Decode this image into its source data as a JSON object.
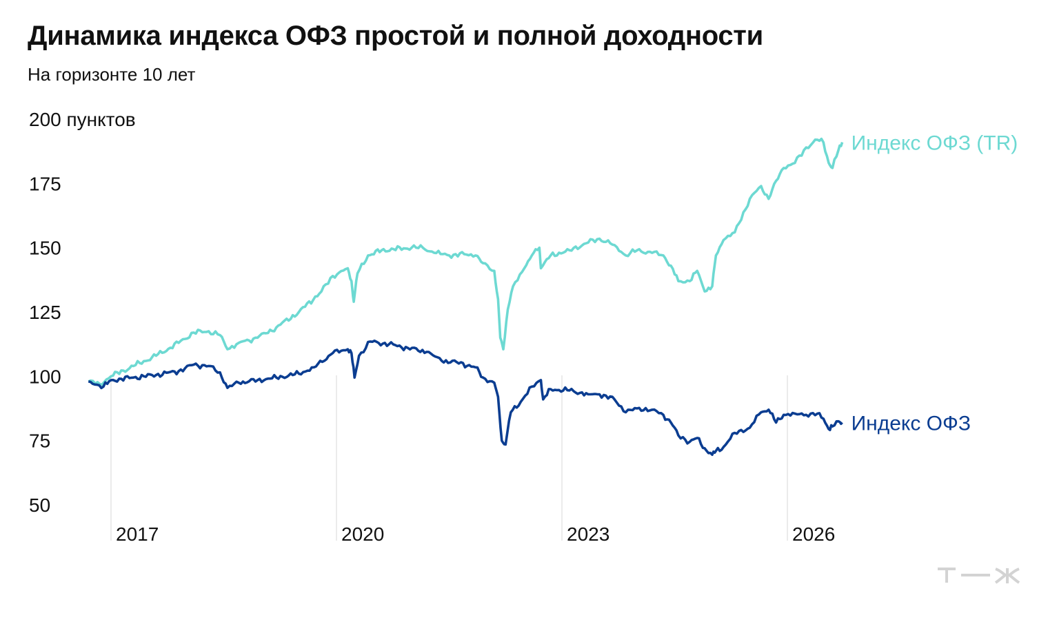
{
  "title": "Динамика индекса ОФЗ простой и полной доходности",
  "subtitle": "На горизонте 10 лет",
  "colors": {
    "tr": "#6dd9d2",
    "price": "#0b3d91",
    "grid": "#e0e0e0",
    "logo": "#d3d3d3"
  },
  "logo_icon": "t-zh-logo",
  "chart_data": {
    "type": "line",
    "xlim": [
      2015.85,
      2029.5
    ],
    "ylim": [
      50,
      200
    ],
    "y_ticks": [
      50,
      75,
      100,
      125,
      150,
      175,
      200
    ],
    "y_tick_labels": [
      "50",
      "75",
      "100",
      "125",
      "150",
      "175",
      "200 пунктов"
    ],
    "x_ticks": [
      2017,
      2020,
      2023,
      2026
    ],
    "x_tick_labels": [
      "2017",
      "2020",
      "2023",
      "2026"
    ],
    "grid": "vertical",
    "legend": "inline-right",
    "series": [
      {
        "name": "Индекс ОФЗ (TR)",
        "color": "#6dd9d2",
        "points": [
          [
            2016.7,
            98
          ],
          [
            2016.85,
            97
          ],
          [
            2017.0,
            100
          ],
          [
            2017.3,
            104
          ],
          [
            2017.6,
            108
          ],
          [
            2017.9,
            113
          ],
          [
            2018.1,
            117
          ],
          [
            2018.3,
            117.5
          ],
          [
            2018.45,
            116
          ],
          [
            2018.55,
            110.5
          ],
          [
            2018.7,
            113
          ],
          [
            2018.95,
            115
          ],
          [
            2019.2,
            119
          ],
          [
            2019.5,
            125
          ],
          [
            2019.8,
            133
          ],
          [
            2019.95,
            139
          ],
          [
            2020.15,
            142
          ],
          [
            2020.2,
            137
          ],
          [
            2020.23,
            129
          ],
          [
            2020.28,
            140
          ],
          [
            2020.42,
            147
          ],
          [
            2020.6,
            149
          ],
          [
            2021.0,
            150
          ],
          [
            2021.15,
            150
          ],
          [
            2021.3,
            148
          ],
          [
            2021.5,
            147
          ],
          [
            2021.7,
            147.5
          ],
          [
            2021.85,
            147
          ],
          [
            2021.95,
            144
          ],
          [
            2022.1,
            141
          ],
          [
            2022.15,
            130
          ],
          [
            2022.18,
            115
          ],
          [
            2022.22,
            110.5
          ],
          [
            2022.28,
            126
          ],
          [
            2022.35,
            135
          ],
          [
            2022.5,
            142
          ],
          [
            2022.6,
            147
          ],
          [
            2022.7,
            150
          ],
          [
            2022.72,
            142
          ],
          [
            2022.85,
            147
          ],
          [
            2023.1,
            149
          ],
          [
            2023.35,
            152
          ],
          [
            2023.5,
            153.5
          ],
          [
            2023.7,
            151
          ],
          [
            2023.85,
            147
          ],
          [
            2024.0,
            149
          ],
          [
            2024.2,
            148
          ],
          [
            2024.35,
            147
          ],
          [
            2024.45,
            143
          ],
          [
            2024.55,
            137
          ],
          [
            2024.7,
            137
          ],
          [
            2024.8,
            141
          ],
          [
            2024.9,
            133
          ],
          [
            2025.0,
            135
          ],
          [
            2025.05,
            147
          ],
          [
            2025.15,
            153
          ],
          [
            2025.3,
            156
          ],
          [
            2025.5,
            169
          ],
          [
            2025.65,
            174
          ],
          [
            2025.75,
            169
          ],
          [
            2025.85,
            176
          ],
          [
            2025.95,
            181
          ],
          [
            2026.1,
            183
          ],
          [
            2026.25,
            189
          ],
          [
            2026.4,
            192
          ],
          [
            2026.48,
            191
          ],
          [
            2026.55,
            183
          ],
          [
            2026.6,
            181
          ],
          [
            2026.68,
            188
          ],
          [
            2026.73,
            191
          ]
        ]
      },
      {
        "name": "Индекс ОФЗ",
        "color": "#0b3d91",
        "points": [
          [
            2016.7,
            98
          ],
          [
            2016.9,
            96
          ],
          [
            2017.0,
            98.5
          ],
          [
            2017.3,
            99.5
          ],
          [
            2017.6,
            100.5
          ],
          [
            2017.9,
            102
          ],
          [
            2018.1,
            104.5
          ],
          [
            2018.3,
            104
          ],
          [
            2018.45,
            101.5
          ],
          [
            2018.55,
            95.5
          ],
          [
            2018.7,
            97.5
          ],
          [
            2018.95,
            98.5
          ],
          [
            2019.2,
            99.5
          ],
          [
            2019.5,
            101
          ],
          [
            2019.7,
            103.5
          ],
          [
            2019.95,
            109
          ],
          [
            2020.15,
            110.5
          ],
          [
            2020.2,
            109
          ],
          [
            2020.24,
            99.5
          ],
          [
            2020.3,
            108
          ],
          [
            2020.45,
            113.5
          ],
          [
            2020.7,
            112.5
          ],
          [
            2020.95,
            111
          ],
          [
            2021.2,
            109.5
          ],
          [
            2021.4,
            106
          ],
          [
            2021.6,
            105.5
          ],
          [
            2021.85,
            103.5
          ],
          [
            2021.95,
            99.5
          ],
          [
            2022.1,
            97.5
          ],
          [
            2022.15,
            92
          ],
          [
            2022.2,
            75
          ],
          [
            2022.25,
            73.5
          ],
          [
            2022.32,
            86
          ],
          [
            2022.45,
            90
          ],
          [
            2022.6,
            96
          ],
          [
            2022.72,
            98.5
          ],
          [
            2022.75,
            91
          ],
          [
            2022.85,
            95
          ],
          [
            2023.1,
            94.5
          ],
          [
            2023.35,
            93
          ],
          [
            2023.5,
            93
          ],
          [
            2023.7,
            91
          ],
          [
            2023.85,
            86
          ],
          [
            2024.0,
            87.5
          ],
          [
            2024.2,
            87
          ],
          [
            2024.35,
            85
          ],
          [
            2024.45,
            82
          ],
          [
            2024.55,
            77
          ],
          [
            2024.7,
            74.5
          ],
          [
            2024.8,
            76
          ],
          [
            2024.9,
            72
          ],
          [
            2025.0,
            69.5
          ],
          [
            2025.05,
            71
          ],
          [
            2025.15,
            72.5
          ],
          [
            2025.3,
            78
          ],
          [
            2025.5,
            80
          ],
          [
            2025.65,
            86
          ],
          [
            2025.75,
            87
          ],
          [
            2025.85,
            82
          ],
          [
            2025.95,
            85
          ],
          [
            2026.1,
            85.5
          ],
          [
            2026.25,
            85
          ],
          [
            2026.4,
            85.5
          ],
          [
            2026.48,
            83.5
          ],
          [
            2026.55,
            79.5
          ],
          [
            2026.6,
            80.5
          ],
          [
            2026.68,
            82.5
          ],
          [
            2026.73,
            82
          ]
        ]
      }
    ]
  }
}
